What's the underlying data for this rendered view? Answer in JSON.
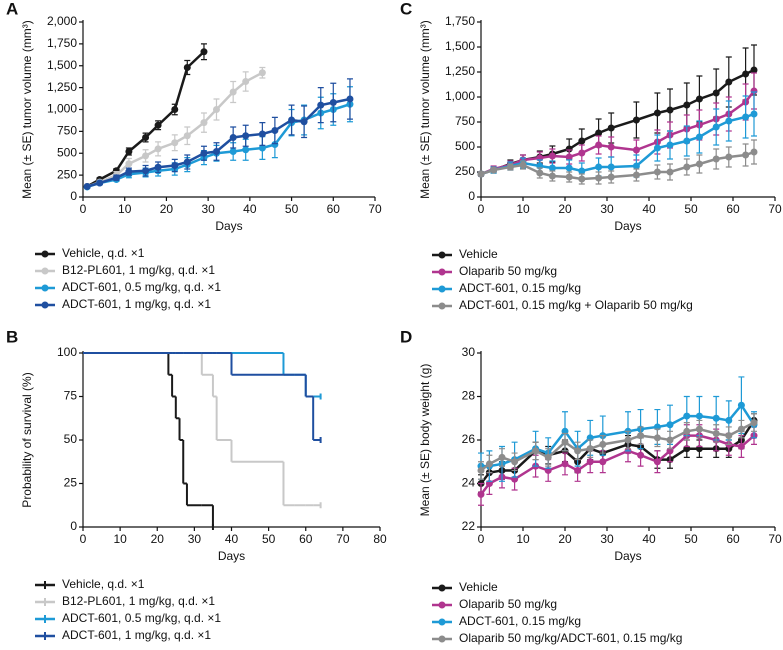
{
  "chart_data": [
    {
      "panel": "A",
      "type": "line",
      "x_label": "Days",
      "y_label": "Mean (± SE) tumor volume (mm³)",
      "xlim": [
        0,
        70
      ],
      "xticks": [
        0,
        10,
        20,
        30,
        40,
        50,
        60,
        70
      ],
      "ylim": [
        0,
        2000
      ],
      "yticks": [
        0,
        250,
        500,
        750,
        {
          "value": 1000,
          "label": "1,000"
        },
        {
          "value": 1250,
          "label": "1,250"
        },
        {
          "value": 1500,
          "label": "1,500"
        },
        {
          "value": 1750,
          "label": "1,750"
        },
        {
          "value": 2000,
          "label": "2,000"
        }
      ],
      "legend": "bottom",
      "x": [
        1,
        4,
        8,
        11,
        15,
        18,
        22,
        25,
        29,
        32,
        36,
        39,
        43,
        46,
        50,
        53,
        57,
        60,
        64
      ],
      "series": [
        {
          "name": "Vehicle, q.d. ×1",
          "color": "#1a1a1a",
          "values": [
            120,
            200,
            300,
            520,
            680,
            820,
            1000,
            1480,
            1660,
            null,
            null,
            null,
            null,
            null,
            null,
            null,
            null,
            null,
            null
          ],
          "errors": [
            15,
            20,
            25,
            40,
            50,
            50,
            60,
            80,
            90,
            null,
            null,
            null,
            null,
            null,
            null,
            null,
            null,
            null,
            null
          ]
        },
        {
          "name": "B12-PL601, 1 mg/kg, q.d. ×1",
          "color": "#c8c8c8",
          "values": [
            120,
            170,
            250,
            380,
            470,
            550,
            620,
            700,
            850,
            1000,
            1200,
            1320,
            1420,
            null,
            null,
            null,
            null,
            null,
            null
          ],
          "errors": [
            15,
            20,
            40,
            60,
            70,
            80,
            90,
            100,
            110,
            120,
            120,
            110,
            60,
            null,
            null,
            null,
            null,
            null,
            null
          ]
        },
        {
          "name": "ADCT-601, 0.5 mg/kg, q.d. ×1",
          "color": "#1e9ad6",
          "values": [
            115,
            160,
            200,
            260,
            280,
            300,
            320,
            370,
            450,
            500,
            520,
            540,
            560,
            600,
            850,
            880,
            960,
            1000,
            1060
          ],
          "errors": [
            10,
            15,
            20,
            40,
            50,
            60,
            70,
            80,
            80,
            90,
            100,
            120,
            130,
            150,
            150,
            170,
            180,
            180,
            200
          ]
        },
        {
          "name": "ADCT-601, 1 mg/kg, q.d. ×1",
          "color": "#1f4fa0",
          "values": [
            120,
            160,
            220,
            290,
            300,
            340,
            360,
            400,
            500,
            520,
            680,
            700,
            720,
            760,
            880,
            860,
            1050,
            1080,
            1120
          ],
          "errors": [
            10,
            20,
            30,
            40,
            60,
            60,
            70,
            80,
            80,
            100,
            120,
            120,
            130,
            150,
            170,
            180,
            200,
            220,
            230
          ]
        }
      ]
    },
    {
      "panel": "B",
      "type": "step",
      "x_label": "Days",
      "y_label": "Probability of survival (%)",
      "xlim": [
        0,
        80
      ],
      "xticks": [
        0,
        10,
        20,
        30,
        40,
        50,
        60,
        70,
        80
      ],
      "ylim": [
        0,
        100
      ],
      "yticks": [
        0,
        25,
        50,
        75,
        100
      ],
      "legend": "bottom",
      "x": [
        0,
        23,
        24,
        25,
        26,
        27,
        28,
        32,
        35,
        36,
        40,
        54,
        57,
        60,
        62,
        64
      ],
      "series": [
        {
          "name": "Vehicle, q.d. ×1",
          "color": "#1a1a1a",
          "values": [
            100,
            87.5,
            75,
            62.5,
            50,
            25,
            12.5,
            12.5,
            0,
            null,
            null,
            null,
            null,
            null,
            null,
            null
          ]
        },
        {
          "name": "B12-PL601, 1 mg/kg, q.d. ×1",
          "color": "#c8c8c8",
          "values": [
            100,
            100,
            100,
            100,
            100,
            100,
            100,
            87.5,
            75,
            50,
            37.5,
            12.5,
            12.5,
            12.5,
            12.5,
            12.5
          ]
        },
        {
          "name": "ADCT-601, 0.5 mg/kg, q.d. ×1",
          "color": "#1e9ad6",
          "values": [
            100,
            100,
            100,
            100,
            100,
            100,
            100,
            100,
            100,
            100,
            100,
            87.5,
            87.5,
            75,
            75,
            75
          ]
        },
        {
          "name": "ADCT-601, 1 mg/kg, q.d. ×1",
          "color": "#1f4fa0",
          "values": [
            100,
            100,
            100,
            100,
            100,
            100,
            100,
            100,
            100,
            100,
            87.5,
            87.5,
            87.5,
            75,
            50,
            50
          ]
        }
      ]
    },
    {
      "panel": "C",
      "type": "line",
      "x_label": "Days",
      "y_label": "Mean (± SE) tumor volume (mm³)",
      "xlim": [
        0,
        70
      ],
      "xticks": [
        0,
        10,
        20,
        30,
        40,
        50,
        60,
        70
      ],
      "ylim": [
        0,
        1750
      ],
      "yticks": [
        0,
        250,
        500,
        750,
        {
          "value": 1000,
          "label": "1,000"
        },
        {
          "value": 1250,
          "label": "1,250"
        },
        {
          "value": 1500,
          "label": "1,500"
        },
        {
          "value": 1750,
          "label": "1,750"
        }
      ],
      "legend": "bottom",
      "x": [
        0,
        3,
        7,
        10,
        14,
        17,
        21,
        24,
        28,
        31,
        37,
        42,
        45,
        49,
        52,
        56,
        59,
        63,
        65
      ],
      "series": [
        {
          "name": "Vehicle",
          "color": "#1a1a1a",
          "values": [
            230,
            270,
            330,
            370,
            400,
            430,
            480,
            560,
            640,
            690,
            770,
            840,
            870,
            920,
            980,
            1040,
            1150,
            1230,
            1270
          ],
          "errors": [
            20,
            30,
            40,
            50,
            60,
            80,
            100,
            120,
            140,
            150,
            180,
            200,
            210,
            220,
            230,
            240,
            250,
            260,
            250
          ]
        },
        {
          "name": "Olaparib 50 mg/kg",
          "color": "#b0358f",
          "values": [
            230,
            280,
            320,
            370,
            390,
            410,
            400,
            440,
            520,
            500,
            470,
            550,
            620,
            680,
            720,
            780,
            830,
            950,
            1060
          ],
          "errors": [
            20,
            30,
            40,
            50,
            60,
            70,
            70,
            80,
            90,
            100,
            100,
            120,
            130,
            140,
            150,
            160,
            170,
            180,
            180
          ]
        },
        {
          "name": "ADCT-601, 0.15 mg/kg",
          "color": "#1e9ad6",
          "values": [
            230,
            270,
            310,
            340,
            310,
            290,
            290,
            260,
            300,
            300,
            310,
            490,
            520,
            560,
            600,
            700,
            760,
            800,
            830
          ],
          "errors": [
            20,
            30,
            40,
            50,
            60,
            70,
            80,
            80,
            90,
            100,
            110,
            130,
            140,
            150,
            160,
            180,
            200,
            210,
            220
          ]
        },
        {
          "name": "ADCT-601, 0.15 mg/kg + Olaparib 50 mg/kg",
          "color": "#8c8c8c",
          "values": [
            230,
            270,
            300,
            320,
            240,
            210,
            200,
            180,
            190,
            200,
            220,
            250,
            250,
            300,
            330,
            380,
            400,
            420,
            450
          ],
          "errors": [
            20,
            20,
            30,
            40,
            50,
            50,
            50,
            50,
            60,
            60,
            60,
            70,
            80,
            80,
            90,
            100,
            100,
            110,
            120
          ]
        }
      ]
    },
    {
      "panel": "D",
      "type": "line",
      "x_label": "Days",
      "y_label": "Mean (± SE) body weight (g)",
      "xlim": [
        0,
        70
      ],
      "xticks": [
        0,
        10,
        20,
        30,
        40,
        50,
        60,
        70
      ],
      "ylim": [
        22,
        30
      ],
      "yticks": [
        22,
        24,
        26,
        28,
        30
      ],
      "legend": "bottom",
      "x": [
        0,
        2,
        5,
        8,
        13,
        16,
        20,
        23,
        26,
        29,
        35,
        38,
        42,
        45,
        49,
        52,
        56,
        59,
        62,
        65
      ],
      "series": [
        {
          "name": "Vehicle",
          "color": "#1a1a1a",
          "values": [
            24.0,
            24.5,
            24.6,
            24.6,
            25.5,
            25.3,
            25.5,
            25.0,
            25.6,
            25.4,
            25.8,
            25.7,
            25.1,
            25.1,
            25.6,
            25.6,
            25.6,
            25.6,
            26.0,
            26.9
          ],
          "errors": [
            0.4,
            0.4,
            0.4,
            0.4,
            0.4,
            0.4,
            0.5,
            0.5,
            0.5,
            0.4,
            0.4,
            0.4,
            0.4,
            0.4,
            0.4,
            0.4,
            0.4,
            0.4,
            0.4,
            0.3
          ]
        },
        {
          "name": "Olaparib 50 mg/kg",
          "color": "#b0358f",
          "values": [
            23.5,
            24.0,
            24.3,
            24.2,
            24.8,
            24.6,
            24.9,
            24.6,
            25.0,
            25.0,
            25.5,
            25.3,
            25.0,
            25.5,
            26.2,
            26.2,
            26.0,
            25.8,
            25.7,
            26.2
          ],
          "errors": [
            0.5,
            0.5,
            0.5,
            0.5,
            0.5,
            0.5,
            0.5,
            0.5,
            0.5,
            0.5,
            0.5,
            0.5,
            0.5,
            0.5,
            0.5,
            0.5,
            0.5,
            0.5,
            0.5,
            0.4
          ]
        },
        {
          "name": "ADCT-601, 0.15 mg/kg",
          "color": "#1e9ad6",
          "values": [
            24.8,
            24.8,
            24.9,
            25.1,
            25.6,
            25.4,
            26.4,
            25.6,
            26.1,
            26.2,
            26.4,
            26.5,
            26.6,
            26.7,
            27.1,
            27.1,
            27.0,
            26.9,
            27.6,
            26.7
          ],
          "errors": [
            0.6,
            0.7,
            0.8,
            0.8,
            0.8,
            0.7,
            0.9,
            0.8,
            0.8,
            0.9,
            0.9,
            0.9,
            0.8,
            0.9,
            0.9,
            0.9,
            1.0,
            0.9,
            1.3,
            0.6
          ]
        },
        {
          "name": "Olaparib 50 mg/kg/ADCT-601, 0.15 mg/kg",
          "color": "#8c8c8c",
          "values": [
            24.6,
            24.9,
            25.2,
            25.0,
            25.5,
            25.2,
            25.9,
            25.5,
            25.6,
            25.8,
            26.0,
            26.2,
            26.1,
            26.0,
            26.4,
            26.5,
            26.3,
            26.2,
            26.5,
            26.8
          ],
          "errors": [
            0.4,
            0.4,
            0.4,
            0.4,
            0.4,
            0.4,
            0.4,
            0.4,
            0.4,
            0.4,
            0.4,
            0.4,
            0.4,
            0.4,
            0.4,
            0.4,
            0.4,
            0.4,
            0.4,
            0.4
          ]
        }
      ]
    }
  ]
}
